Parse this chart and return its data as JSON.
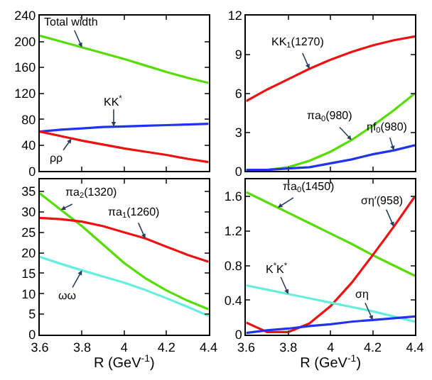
{
  "chart_data": [
    {
      "type": "line",
      "x": [
        3.6,
        3.7,
        3.8,
        3.9,
        4.0,
        4.1,
        4.2,
        4.3,
        4.4
      ],
      "xlim": [
        3.6,
        4.4
      ],
      "xticks": [
        3.6,
        3.8,
        4,
        4.2,
        4.4
      ],
      "ylim": [
        0,
        240
      ],
      "yticks": [
        0,
        40,
        80,
        120,
        160,
        200,
        240
      ],
      "tick_labels": "y",
      "series": [
        {
          "color": "#55dd00",
          "values": [
            209,
            200,
            191,
            182,
            173,
            163,
            153,
            144,
            136
          ]
        },
        {
          "color": "#2233ee",
          "values": [
            61,
            64,
            66,
            68,
            69,
            70,
            71,
            72,
            73
          ]
        },
        {
          "color": "#ee1111",
          "values": [
            61,
            54,
            47,
            41,
            35,
            30,
            25,
            19,
            14
          ]
        }
      ],
      "annotations": [
        {
          "text": "Total width",
          "x": 3.8,
          "y": 191
        },
        {
          "text": "KK$^{*}$",
          "x": 3.95,
          "y": 69
        },
        {
          "text": "ρρ",
          "x": 3.75,
          "y": 50
        }
      ]
    },
    {
      "type": "line",
      "x": [
        3.6,
        3.7,
        3.8,
        3.9,
        4.0,
        4.1,
        4.2,
        4.3,
        4.4
      ],
      "xlim": [
        3.6,
        4.4
      ],
      "xticks": [
        3.6,
        3.8,
        4,
        4.2,
        4.4
      ],
      "ylim": [
        0,
        12
      ],
      "yticks": [
        0,
        3,
        6,
        9,
        12
      ],
      "tick_labels": "y",
      "series": [
        {
          "color": "#ee1111",
          "values": [
            5.4,
            6.3,
            7.1,
            7.9,
            8.6,
            9.2,
            9.7,
            10.1,
            10.4
          ]
        },
        {
          "color": "#55dd00",
          "values": [
            0.1,
            0.1,
            0.3,
            0.8,
            1.5,
            2.4,
            3.5,
            4.7,
            6.0
          ]
        },
        {
          "color": "#2233ee",
          "values": [
            0.1,
            0.1,
            0.2,
            0.3,
            0.6,
            0.9,
            1.3,
            1.6,
            2.0
          ]
        }
      ],
      "annotations": [
        {
          "text": "KK$_{1}$(1270)",
          "x": 3.9,
          "y": 7.9
        },
        {
          "text": "πa$_{0}$(980)",
          "x": 4.1,
          "y": 2.4
        },
        {
          "text": "ηf$_{0}$(980)",
          "x": 4.3,
          "y": 1.6
        }
      ]
    },
    {
      "type": "line",
      "x": [
        3.6,
        3.7,
        3.8,
        3.9,
        4.0,
        4.1,
        4.2,
        4.3,
        4.4
      ],
      "xlim": [
        3.6,
        4.4
      ],
      "xticks": [
        3.6,
        3.8,
        4,
        4.2,
        4.4
      ],
      "ylim": [
        0,
        38
      ],
      "yticks": [
        0,
        5,
        10,
        15,
        20,
        25,
        30,
        35
      ],
      "xlabel": "R (GeV$^{-1}$)",
      "series": [
        {
          "color": "#55dd00",
          "values": [
            34.5,
            30.5,
            26.5,
            22,
            17.5,
            13.8,
            10.8,
            8.3,
            6.2
          ]
        },
        {
          "color": "#ee1111",
          "values": [
            28.5,
            28.2,
            27.6,
            26.5,
            25,
            23.5,
            21.5,
            19.5,
            17.8
          ]
        },
        {
          "color": "#66eedd",
          "values": [
            19,
            17.3,
            15.7,
            14.2,
            12.7,
            10.9,
            8.9,
            6.8,
            4.6
          ]
        }
      ],
      "annotations": [
        {
          "text": "πa$_{2}$(1320)",
          "x": 3.7,
          "y": 30.5
        },
        {
          "text": "πa$_{1}$(1260)",
          "x": 4.1,
          "y": 23.5
        },
        {
          "text": "ωω",
          "x": 3.8,
          "y": 15.7
        }
      ]
    },
    {
      "type": "line",
      "x": [
        3.6,
        3.7,
        3.8,
        3.9,
        4.0,
        4.1,
        4.2,
        4.3,
        4.4
      ],
      "xlim": [
        3.6,
        4.4
      ],
      "xticks": [
        3.6,
        3.8,
        4,
        4.2,
        4.4
      ],
      "ylim": [
        0,
        1.8
      ],
      "yticks": [
        0,
        0.4,
        0.8,
        1.2,
        1.6
      ],
      "xlabel": "R (GeV$^{-1}$)",
      "series": [
        {
          "color": "#55dd00",
          "values": [
            1.65,
            1.53,
            1.41,
            1.29,
            1.17,
            1.05,
            0.92,
            0.8,
            0.68
          ]
        },
        {
          "color": "#ee1111",
          "values": [
            0.14,
            0.03,
            0.03,
            0.13,
            0.33,
            0.6,
            0.92,
            1.25,
            1.6
          ]
        },
        {
          "color": "#66eedd",
          "values": [
            0.57,
            0.52,
            0.47,
            0.42,
            0.37,
            0.32,
            0.27,
            0.21,
            0.15
          ]
        },
        {
          "color": "#2233ee",
          "values": [
            0.02,
            0.05,
            0.07,
            0.1,
            0.12,
            0.15,
            0.17,
            0.19,
            0.21
          ]
        }
      ],
      "annotations": [
        {
          "text": "πa$_{0}$(1450)",
          "x": 3.75,
          "y": 1.47
        },
        {
          "text": "ση′(958)",
          "x": 4.3,
          "y": 1.25
        },
        {
          "text": "K$^{*}$K$^{*}$",
          "x": 3.8,
          "y": 0.47
        },
        {
          "text": "ση",
          "x": 4.2,
          "y": 0.17
        }
      ]
    }
  ]
}
